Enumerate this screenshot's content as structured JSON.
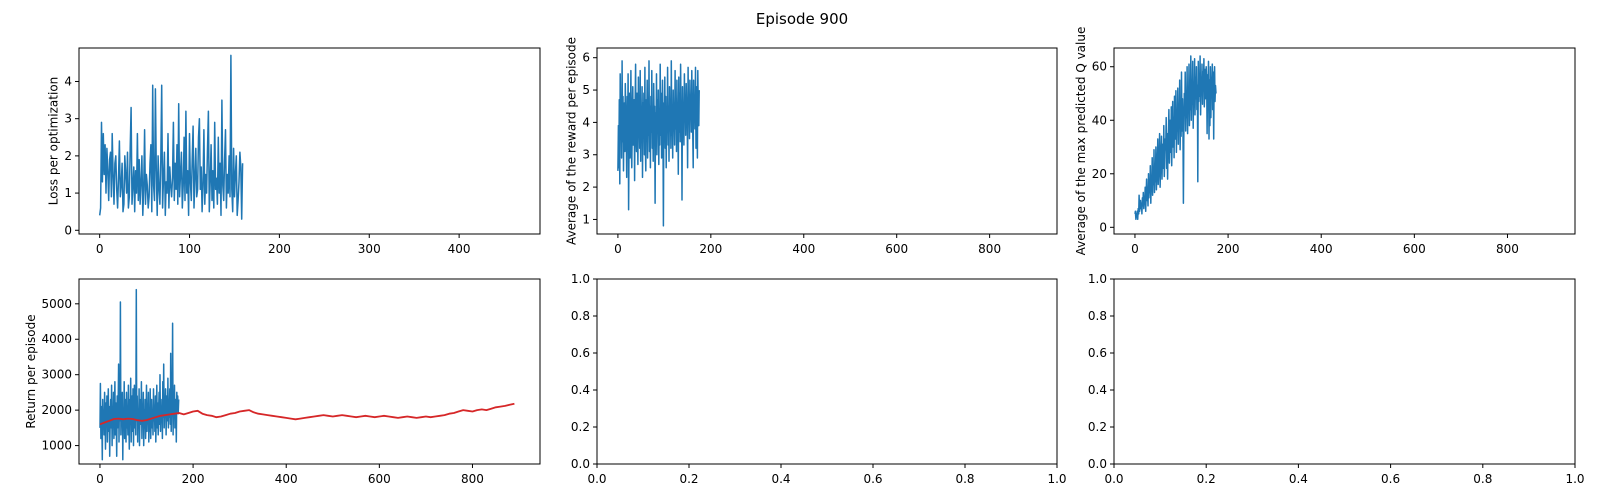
{
  "figure": {
    "suptitle": "Episode 900"
  },
  "chart_data": [
    {
      "type": "line",
      "ylabel": "Loss per optimization",
      "xlim": [
        -23,
        490
      ],
      "ylim": [
        -0.1,
        4.9
      ],
      "xticks": [
        0,
        100,
        200,
        300,
        400
      ],
      "yticks": [
        0,
        1,
        2,
        3,
        4
      ],
      "color": "#1f77b4",
      "series": [
        {
          "x_step": 1,
          "values": [
            0.4,
            0.6,
            2.9,
            1.3,
            2.6,
            1.5,
            2.3,
            1.0,
            2.2,
            1.6,
            0.8,
            1.9,
            2.1,
            0.9,
            2.6,
            1.5,
            0.7,
            1.8,
            2.0,
            1.1,
            0.6,
            1.4,
            2.4,
            0.9,
            1.2,
            1.8,
            0.5,
            0.7,
            2.0,
            1.5,
            1.0,
            2.1,
            0.6,
            0.9,
            2.2,
            3.3,
            0.7,
            1.2,
            1.7,
            0.5,
            1.6,
            1.0,
            2.6,
            0.8,
            1.9,
            0.7,
            1.3,
            2.0,
            0.4,
            1.1,
            2.7,
            0.7,
            1.5,
            1.2,
            0.6,
            0.9,
            1.8,
            2.3,
            0.5,
            3.9,
            1.2,
            0.8,
            3.8,
            1.6,
            0.4,
            2.0,
            1.1,
            0.7,
            1.9,
            3.9,
            0.6,
            1.4,
            2.1,
            0.4,
            1.3,
            1.0,
            2.6,
            0.6,
            1.7,
            1.2,
            0.9,
            1.4,
            2.9,
            0.8,
            1.8,
            1.1,
            2.3,
            0.7,
            3.4,
            0.9,
            1.5,
            2.1,
            0.6,
            1.2,
            2.5,
            0.8,
            3.2,
            1.0,
            1.6,
            0.4,
            2.6,
            1.3,
            0.8,
            1.9,
            2.8,
            0.6,
            1.4,
            2.2,
            0.9,
            1.1,
            2.5,
            3.0,
            1.1,
            1.7,
            0.5,
            1.2,
            2.7,
            0.7,
            1.5,
            1.0,
            2.2,
            3.2,
            0.5,
            1.3,
            2.3,
            0.8,
            1.6,
            0.6,
            2.9,
            1.1,
            1.4,
            0.7,
            2.5,
            1.0,
            1.8,
            0.4,
            3.5,
            1.2,
            0.8,
            1.9,
            2.7,
            0.6,
            1.5,
            1.0,
            2.0,
            0.9,
            4.7,
            1.1,
            0.5,
            2.2,
            0.9,
            1.5,
            2.0,
            0.4,
            0.8,
            1.3,
            2.1,
            1.7,
            0.3,
            1.8
          ]
        }
      ]
    },
    {
      "type": "line",
      "ylabel": "Average of the reward per episode",
      "xlim": [
        -45,
        945
      ],
      "ylim": [
        0.55,
        6.3
      ],
      "xticks": [
        0,
        200,
        400,
        600,
        800
      ],
      "yticks": [
        1,
        2,
        3,
        4,
        5,
        6
      ],
      "color": "#1f77b4",
      "series": [
        {
          "x_step": 1,
          "values": [
            2.5,
            3.9,
            2.6,
            4.7,
            2.1,
            5.5,
            3.9,
            4.6,
            2.9,
            5.9,
            3.4,
            4.8,
            2.5,
            3.9,
            4.6,
            3.1,
            5.2,
            4.2,
            3.5,
            2.3,
            4.8,
            3.9,
            5.5,
            1.3,
            3.6,
            4.9,
            2.9,
            4.2,
            5.6,
            3.1,
            2.6,
            4.3,
            5.1,
            3.3,
            3.9,
            4.7,
            2.2,
            4.5,
            5.8,
            3.6,
            3.1,
            4.9,
            4.2,
            2.7,
            5.4,
            3.7,
            4.1,
            3.2,
            5.6,
            2.8,
            4.4,
            3.6,
            5.1,
            2.3,
            4.6,
            3.8,
            4.9,
            3.0,
            5.7,
            3.4,
            2.5,
            4.7,
            3.9,
            5.3,
            2.9,
            4.2,
            3.6,
            5.9,
            3.1,
            4.5,
            2.6,
            4.8,
            3.7,
            5.6,
            3.2,
            4.1,
            2.8,
            5.2,
            3.9,
            4.5,
            1.5,
            4.3,
            3.4,
            5.5,
            3.0,
            4.7,
            3.8,
            5.0,
            2.7,
            4.4,
            3.3,
            5.8,
            3.6,
            4.9,
            2.9,
            4.2,
            5.3,
            3.5,
            0.8,
            4.6,
            3.9,
            5.4,
            3.2,
            4.8,
            2.6,
            4.3,
            3.7,
            5.7,
            3.3,
            4.5,
            2.8,
            5.1,
            3.8,
            4.6,
            3.2,
            5.9,
            3.6,
            4.2,
            2.9,
            5.0,
            3.9,
            4.4,
            3.3,
            5.6,
            3.8,
            4.7,
            3.1,
            5.3,
            4.0,
            4.5,
            2.4,
            5.4,
            3.7,
            4.9,
            3.4,
            5.8,
            4.1,
            4.6,
            1.6,
            5.1,
            3.9,
            4.4,
            3.3,
            5.5,
            4.1,
            4.8,
            3.6,
            5.2,
            4.3,
            4.5,
            2.6,
            5.7,
            4.0,
            4.8,
            3.5,
            5.3,
            4.2,
            4.6,
            3.7,
            5.6,
            4.1,
            3.8,
            2.6,
            5.3,
            4.0,
            4.7,
            3.8,
            5.7,
            3.2,
            5.1,
            4.6,
            2.9,
            5.6,
            4.3,
            3.9,
            5.0
          ]
        }
      ]
    },
    {
      "type": "line",
      "ylabel": "Average of the max predicted Q value",
      "xlim": [
        -45,
        945
      ],
      "ylim": [
        -2.5,
        67
      ],
      "xticks": [
        0,
        200,
        400,
        600,
        800
      ],
      "yticks": [
        0,
        20,
        40,
        60
      ],
      "color": "#1f77b4",
      "series": [
        {
          "x_step": 1,
          "values": [
            5,
            6,
            3,
            5,
            4,
            6,
            3,
            7,
            5,
            12,
            6,
            8,
            10,
            7,
            9,
            5,
            11,
            8,
            13,
            7,
            10,
            9,
            15,
            6,
            12,
            18,
            10,
            14,
            8,
            20,
            11,
            16,
            13,
            23,
            9,
            18,
            14,
            26,
            12,
            20,
            16,
            29,
            13,
            22,
            17,
            30,
            14,
            19,
            24,
            33,
            16,
            21,
            26,
            35,
            15,
            23,
            28,
            34,
            18,
            26,
            31,
            22,
            38,
            19,
            27,
            33,
            29,
            41,
            22,
            35,
            18,
            30,
            37,
            44,
            24,
            33,
            40,
            28,
            45,
            23,
            36,
            47,
            30,
            41,
            26,
            49,
            33,
            38,
            51,
            28,
            43,
            36,
            52,
            31,
            45,
            38,
            55,
            29,
            42,
            34,
            58,
            36,
            48,
            40,
            9,
            33,
            50,
            42,
            58,
            36,
            47,
            41,
            60,
            35,
            49,
            43,
            61,
            38,
            52,
            44,
            64,
            40,
            55,
            46,
            62,
            37,
            51,
            45,
            63,
            42,
            56,
            48,
            60,
            44,
            53,
            17,
            62,
            47,
            57,
            49,
            64,
            42,
            55,
            50,
            61,
            46,
            58,
            51,
            63,
            45,
            52,
            59,
            48,
            60,
            54,
            35,
            57,
            51,
            62,
            33,
            55,
            38,
            60,
            41,
            56,
            52,
            61,
            44,
            58,
            33,
            55,
            60,
            47,
            53,
            50
          ]
        }
      ]
    },
    {
      "type": "line",
      "ylabel": "Return per episode",
      "xlim": [
        -45,
        945
      ],
      "ylim": [
        480,
        5700
      ],
      "xticks": [
        0,
        200,
        400,
        600,
        800
      ],
      "yticks": [
        1000,
        2000,
        3000,
        4000,
        5000
      ],
      "color": "#1f77b4",
      "series": [
        {
          "name": "",
          "x_step": 1,
          "values": [
            1500,
            2750,
            1200,
            2100,
            1800,
            600,
            2300,
            1500,
            2000,
            1300,
            2500,
            1700,
            900,
            2200,
            1600,
            2400,
            1100,
            1900,
            2600,
            1400,
            2100,
            700,
            1800,
            2300,
            1500,
            2700,
            1000,
            2000,
            1600,
            2500,
            1200,
            1900,
            2800,
            1300,
            2200,
            1700,
            700,
            2400,
            1500,
            2000,
            3300,
            1100,
            2600,
            1700,
            5050,
            1300,
            2100,
            1800,
            2500,
            600,
            2000,
            1500,
            2800,
            1200,
            2300,
            1700,
            1100,
            2500,
            1500,
            2000,
            1300,
            2700,
            1800,
            900,
            2300,
            1600,
            2900,
            1100,
            2000,
            2400,
            1400,
            2600,
            1000,
            1900,
            2700,
            1500,
            2100,
            1300,
            5400,
            1700,
            2400,
            1100,
            2000,
            1500,
            2600,
            1000,
            1900,
            2300,
            1600,
            2800,
            1200,
            2100,
            1700,
            2500,
            1000,
            2000,
            1500,
            2300,
            1200,
            1900,
            2700,
            1400,
            2100,
            1700,
            2500,
            1100,
            2000,
            1400,
            2600,
            1200,
            1800,
            2300,
            1500,
            2000,
            1300,
            2600,
            1700,
            2100,
            1400,
            2400,
            1100,
            1900,
            2700,
            1500,
            2200,
            1300,
            2000,
            2500,
            1600,
            3000,
            1400,
            2300,
            1700,
            2100,
            1200,
            2800,
            1800,
            3300,
            1500,
            2200,
            1900,
            2600,
            1300,
            2000,
            2400,
            1700,
            2900,
            1500,
            2200,
            1800,
            2600,
            1600,
            3600,
            1400,
            2100,
            1900,
            4450,
            1300,
            2200,
            1800,
            2700,
            1500,
            2300,
            2100,
            1100,
            2500,
            2000,
            2400,
            1900,
            2300
          ]
        },
        {
          "name": "",
          "x_step": 10,
          "color": "#d62728",
          "values": [
            1600,
            1650,
            1700,
            1750,
            1760,
            1740,
            1760,
            1750,
            1720,
            1700,
            1720,
            1760,
            1800,
            1840,
            1860,
            1880,
            1900,
            1920,
            1880,
            1920,
            1960,
            1980,
            1900,
            1860,
            1840,
            1800,
            1820,
            1860,
            1900,
            1920,
            1960,
            1980,
            2000,
            1940,
            1900,
            1880,
            1860,
            1840,
            1820,
            1800,
            1780,
            1760,
            1740,
            1760,
            1780,
            1800,
            1820,
            1840,
            1860,
            1840,
            1820,
            1840,
            1860,
            1840,
            1820,
            1800,
            1820,
            1840,
            1820,
            1800,
            1820,
            1840,
            1820,
            1800,
            1780,
            1800,
            1820,
            1800,
            1780,
            1800,
            1820,
            1800,
            1820,
            1840,
            1860,
            1900,
            1920,
            1960,
            2000,
            1980,
            1960,
            2000,
            2020,
            2000,
            2040,
            2080,
            2100,
            2120,
            2150,
            2180
          ]
        }
      ]
    },
    {
      "type": "line",
      "xlim": [
        0,
        1
      ],
      "ylim": [
        0,
        1
      ],
      "xticks": [
        0.0,
        0.2,
        0.4,
        0.6,
        0.8,
        1.0
      ],
      "yticks": [
        0.0,
        0.2,
        0.4,
        0.6,
        0.8,
        1.0
      ],
      "xticklabels": [
        "0.0",
        "0.2",
        "0.4",
        "0.6",
        "0.8",
        "1.0"
      ],
      "yticklabels": [
        "0.0",
        "0.2",
        "0.4",
        "0.6",
        "0.8",
        "1.0"
      ],
      "series": []
    },
    {
      "type": "line",
      "xlim": [
        0,
        1
      ],
      "ylim": [
        0,
        1
      ],
      "xticks": [
        0.0,
        0.2,
        0.4,
        0.6,
        0.8,
        1.0
      ],
      "yticks": [
        0.0,
        0.2,
        0.4,
        0.6,
        0.8,
        1.0
      ],
      "xticklabels": [
        "0.0",
        "0.2",
        "0.4",
        "0.6",
        "0.8",
        "1.0"
      ],
      "yticklabels": [
        "0.0",
        "0.2",
        "0.4",
        "0.6",
        "0.8",
        "1.0"
      ],
      "series": []
    }
  ]
}
